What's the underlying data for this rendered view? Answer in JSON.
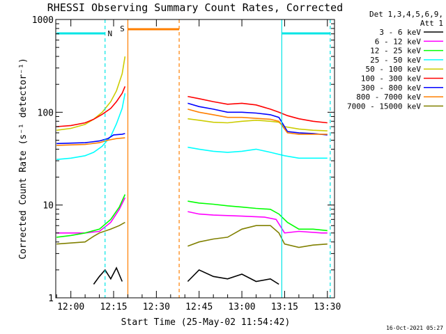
{
  "chart_data": {
    "type": "line",
    "title": "RHESSI Observing Summary Count Rates, Corrected",
    "xlabel": "Start Time (25-May-02 11:54:42)",
    "ylabel": "Corrected Count Rate (s⁻¹ detector⁻¹)",
    "y_scale": "log",
    "ylim": [
      1,
      1000
    ],
    "xlim": [
      "11:54:42",
      "13:32:30"
    ],
    "x_ticks": [
      "12:00",
      "12:15",
      "12:30",
      "12:45",
      "13:00",
      "13:15",
      "13:30"
    ],
    "y_ticks": [
      "1",
      "10",
      "100",
      "1000"
    ],
    "legend_header": [
      "Det 1,3,4,5,6,9,",
      "Att 1"
    ],
    "legend_position": "right",
    "grid": false,
    "footer": "16-Oct-2021 05:27",
    "flags": {
      "night": {
        "label": "N",
        "color": "#00e5e5",
        "bars": [
          [
            "11:55",
            "12:12"
          ],
          [
            "13:14",
            "13:31"
          ]
        ]
      },
      "saa": {
        "label": "S",
        "color": "#ff7f00",
        "bars": [
          [
            "12:20",
            "12:38"
          ]
        ]
      }
    },
    "markers": [
      {
        "time": "12:12",
        "color": "#00e5e5",
        "style": "dashed"
      },
      {
        "time": "12:20",
        "color": "#ff7f00",
        "style": "solid"
      },
      {
        "time": "12:38",
        "color": "#ff7f00",
        "style": "dashed"
      },
      {
        "time": "13:14",
        "color": "#00e5e5",
        "style": "solid"
      },
      {
        "time": "13:31",
        "color": "#00e5e5",
        "style": "dashed"
      }
    ],
    "series": [
      {
        "name": "3 - 6 keV",
        "color": "#000000",
        "x": [
          "12:08",
          "12:10",
          "12:12",
          "12:14",
          "12:16",
          "12:18",
          "12:41",
          "12:45",
          "12:50",
          "12:55",
          "13:00",
          "13:05",
          "13:10",
          "13:13"
        ],
        "values": [
          1.4,
          1.7,
          2.0,
          1.6,
          2.1,
          1.5,
          1.5,
          2.0,
          1.7,
          1.6,
          1.8,
          1.5,
          1.6,
          1.4
        ]
      },
      {
        "name": "6 - 12 keV",
        "color": "#ff00ff",
        "x": [
          "11:55",
          "12:05",
          "12:10",
          "12:14",
          "12:17",
          "12:19",
          "12:41",
          "12:45",
          "12:50",
          "13:00",
          "13:08",
          "13:12",
          "13:15",
          "13:20",
          "13:28",
          "13:30"
        ],
        "values": [
          5.0,
          5.0,
          5.2,
          6.5,
          9.0,
          12.0,
          8.5,
          8.0,
          7.8,
          7.6,
          7.4,
          7.0,
          5.0,
          5.2,
          5.0,
          5.0
        ]
      },
      {
        "name": "12 - 25 keV",
        "color": "#00ff00",
        "x": [
          "11:55",
          "12:00",
          "12:05",
          "12:10",
          "12:14",
          "12:17",
          "12:19",
          "12:41",
          "12:45",
          "12:50",
          "12:55",
          "13:00",
          "13:05",
          "13:10",
          "13:13",
          "13:16",
          "13:20",
          "13:25",
          "13:30"
        ],
        "values": [
          4.5,
          4.7,
          5.0,
          5.5,
          7.0,
          9.5,
          13.0,
          11.0,
          10.5,
          10.2,
          9.8,
          9.5,
          9.2,
          9.0,
          8.0,
          6.5,
          5.5,
          5.5,
          5.3
        ]
      },
      {
        "name": "25 - 50 keV",
        "color": "#00ffff",
        "x": [
          "11:55",
          "12:00",
          "12:05",
          "12:08",
          "12:11",
          "12:14",
          "12:16",
          "12:18",
          "12:19",
          "12:41",
          "12:45",
          "12:50",
          "12:55",
          "13:00",
          "13:05",
          "13:10",
          "13:15",
          "13:20",
          "13:25",
          "13:30"
        ],
        "values": [
          31,
          32,
          34,
          37,
          43,
          55,
          75,
          110,
          160,
          42,
          40,
          38,
          37,
          38,
          40,
          37,
          34,
          32,
          32,
          32
        ]
      },
      {
        "name": "50 - 100 keV",
        "color": "#cccc00",
        "x": [
          "11:55",
          "12:00",
          "12:05",
          "12:08",
          "12:11",
          "12:14",
          "12:16",
          "12:18",
          "12:19",
          "12:41",
          "12:45",
          "12:50",
          "12:55",
          "13:00",
          "13:05",
          "13:10",
          "13:13",
          "13:15",
          "13:20",
          "13:25",
          "13:30"
        ],
        "values": [
          64,
          67,
          74,
          84,
          100,
          130,
          170,
          260,
          400,
          85,
          82,
          78,
          77,
          80,
          82,
          80,
          78,
          70,
          66,
          64,
          63
        ]
      },
      {
        "name": "100 - 300 keV",
        "color": "#ff0000",
        "x": [
          "11:55",
          "12:00",
          "12:05",
          "12:08",
          "12:11",
          "12:14",
          "12:16",
          "12:18",
          "12:19",
          "12:41",
          "12:45",
          "12:50",
          "12:55",
          "13:00",
          "13:05",
          "13:10",
          "13:13",
          "13:16",
          "13:20",
          "13:25",
          "13:30"
        ],
        "values": [
          70,
          72,
          77,
          84,
          95,
          110,
          130,
          160,
          190,
          148,
          140,
          130,
          122,
          125,
          120,
          108,
          100,
          92,
          85,
          80,
          77
        ]
      },
      {
        "name": "300 - 800 keV",
        "color": "#0000ff",
        "x": [
          "11:55",
          "12:05",
          "12:10",
          "12:13",
          "12:15",
          "12:18",
          "12:19",
          "12:41",
          "12:45",
          "12:50",
          "12:55",
          "13:00",
          "13:05",
          "13:10",
          "13:13",
          "13:16",
          "13:20",
          "13:25",
          "13:30"
        ],
        "values": [
          46,
          47,
          49,
          52,
          57,
          58,
          59,
          125,
          115,
          108,
          100,
          100,
          98,
          94,
          88,
          62,
          60,
          59,
          57
        ]
      },
      {
        "name": "800 - 7000 keV",
        "color": "#ff7f00",
        "x": [
          "11:55",
          "12:05",
          "12:10",
          "12:13",
          "12:16",
          "12:19",
          "12:41",
          "12:45",
          "12:50",
          "12:55",
          "13:00",
          "13:05",
          "13:10",
          "13:13",
          "13:16",
          "13:20",
          "13:25",
          "13:30"
        ],
        "values": [
          44,
          45,
          47,
          50,
          52,
          53,
          108,
          100,
          94,
          88,
          88,
          86,
          84,
          80,
          60,
          58,
          58,
          58
        ]
      },
      {
        "name": "7000 - 15000 keV",
        "color": "#808000",
        "x": [
          "11:55",
          "12:00",
          "12:05",
          "12:08",
          "12:10",
          "12:14",
          "12:17",
          "12:19",
          "12:41",
          "12:45",
          "12:50",
          "12:55",
          "13:00",
          "13:05",
          "13:10",
          "13:13",
          "13:15",
          "13:20",
          "13:25",
          "13:30"
        ],
        "values": [
          3.8,
          3.9,
          4.0,
          4.6,
          5.0,
          5.5,
          6.0,
          6.5,
          3.6,
          4.0,
          4.3,
          4.5,
          5.5,
          6.0,
          6.0,
          5.0,
          3.8,
          3.5,
          3.7,
          3.8
        ]
      }
    ]
  }
}
